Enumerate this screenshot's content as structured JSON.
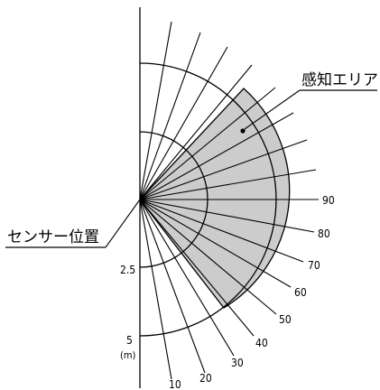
{
  "labels": {
    "detection_area": "感知エリア",
    "sensor_position": "センサー位置",
    "distance_2_5": "2.5",
    "distance_5": "5",
    "distance_unit": "(m)"
  },
  "angle_labels": [
    "10",
    "20",
    "30",
    "40",
    "50",
    "60",
    "70",
    "80",
    "90"
  ],
  "colors": {
    "area_fill": "#cccccc",
    "line": "#000000"
  }
}
